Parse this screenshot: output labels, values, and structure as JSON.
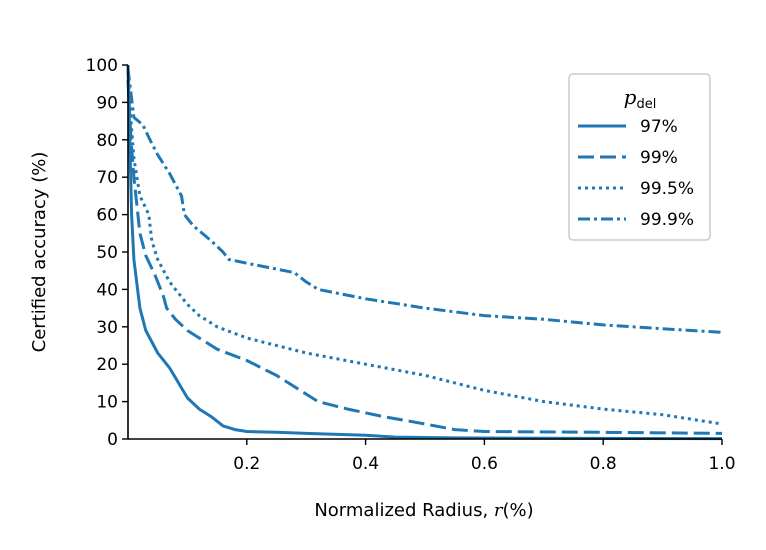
{
  "colors": {
    "series": "#1f77b4",
    "axis": "#000000",
    "legend_border": "#cccccc"
  },
  "chart_data": {
    "type": "line",
    "title": "",
    "xlabel_prefix": "Normalized Radius, ",
    "xlabel_var": "r",
    "xlabel_suffix": "(%)",
    "ylabel_text": "Certified accuracy ",
    "ylabel_unit": "(%)",
    "xlim": [
      0,
      1.0
    ],
    "ylim": [
      0,
      100
    ],
    "x_ticks": [
      0.2,
      0.4,
      0.6,
      0.8,
      1.0
    ],
    "x_tick_labels": [
      "0.2",
      "0.4",
      "0.6",
      "0.8",
      "1.0"
    ],
    "y_ticks": [
      0,
      10,
      20,
      30,
      40,
      50,
      60,
      70,
      80,
      90,
      100
    ],
    "y_tick_labels": [
      "0",
      "10",
      "20",
      "30",
      "40",
      "50",
      "60",
      "70",
      "80",
      "90",
      "100"
    ],
    "grid": false,
    "legend": {
      "title_var": "p",
      "title_sub": "del",
      "placement": "top-right"
    },
    "series": [
      {
        "name": "97%",
        "style": "solid",
        "points": [
          [
            0,
            100
          ],
          [
            0.003,
            80
          ],
          [
            0.006,
            60
          ],
          [
            0.01,
            48
          ],
          [
            0.02,
            35
          ],
          [
            0.03,
            29
          ],
          [
            0.05,
            23
          ],
          [
            0.07,
            19
          ],
          [
            0.085,
            15
          ],
          [
            0.1,
            11
          ],
          [
            0.12,
            8
          ],
          [
            0.14,
            6
          ],
          [
            0.16,
            3.5
          ],
          [
            0.18,
            2.5
          ],
          [
            0.2,
            2
          ],
          [
            0.25,
            1.8
          ],
          [
            0.3,
            1.5
          ],
          [
            0.4,
            1
          ],
          [
            0.45,
            0.5
          ],
          [
            0.55,
            0.3
          ],
          [
            0.7,
            0.2
          ],
          [
            1.0,
            0.1
          ]
        ]
      },
      {
        "name": "99%",
        "style": "dashed",
        "points": [
          [
            0,
            96
          ],
          [
            0.005,
            80
          ],
          [
            0.01,
            70
          ],
          [
            0.02,
            55
          ],
          [
            0.03,
            49
          ],
          [
            0.045,
            44
          ],
          [
            0.055,
            40
          ],
          [
            0.06,
            38
          ],
          [
            0.065,
            35
          ],
          [
            0.08,
            32
          ],
          [
            0.1,
            29
          ],
          [
            0.15,
            24
          ],
          [
            0.2,
            21
          ],
          [
            0.25,
            17
          ],
          [
            0.3,
            12
          ],
          [
            0.32,
            10
          ],
          [
            0.37,
            8
          ],
          [
            0.43,
            6
          ],
          [
            0.5,
            4
          ],
          [
            0.55,
            2.5
          ],
          [
            0.6,
            2
          ],
          [
            0.8,
            1.8
          ],
          [
            1.0,
            1.5
          ]
        ]
      },
      {
        "name": "99.5%",
        "style": "dotted",
        "points": [
          [
            0,
            98
          ],
          [
            0.005,
            85
          ],
          [
            0.01,
            75
          ],
          [
            0.02,
            65
          ],
          [
            0.035,
            60
          ],
          [
            0.04,
            53
          ],
          [
            0.05,
            48
          ],
          [
            0.07,
            42
          ],
          [
            0.08,
            40
          ],
          [
            0.09,
            38
          ],
          [
            0.1,
            36
          ],
          [
            0.12,
            33
          ],
          [
            0.15,
            30
          ],
          [
            0.2,
            27
          ],
          [
            0.3,
            23
          ],
          [
            0.4,
            20
          ],
          [
            0.5,
            17
          ],
          [
            0.6,
            13
          ],
          [
            0.7,
            10
          ],
          [
            0.8,
            8
          ],
          [
            0.9,
            6.5
          ],
          [
            1.0,
            4
          ]
        ]
      },
      {
        "name": "99.9%",
        "style": "dashdot",
        "points": [
          [
            0,
            99
          ],
          [
            0.01,
            86
          ],
          [
            0.025,
            84
          ],
          [
            0.04,
            79
          ],
          [
            0.05,
            76
          ],
          [
            0.07,
            71
          ],
          [
            0.09,
            65
          ],
          [
            0.095,
            60
          ],
          [
            0.11,
            57
          ],
          [
            0.14,
            53
          ],
          [
            0.16,
            50
          ],
          [
            0.17,
            48
          ],
          [
            0.2,
            47
          ],
          [
            0.28,
            44.5
          ],
          [
            0.3,
            42
          ],
          [
            0.32,
            40
          ],
          [
            0.4,
            37.5
          ],
          [
            0.5,
            35
          ],
          [
            0.6,
            33
          ],
          [
            0.7,
            32
          ],
          [
            0.8,
            30.5
          ],
          [
            0.9,
            29.5
          ],
          [
            1.0,
            28.5
          ]
        ]
      }
    ]
  }
}
